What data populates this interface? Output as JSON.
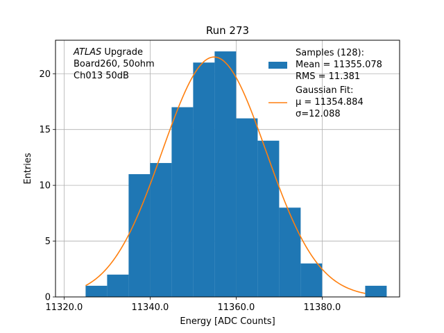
{
  "chart_data": {
    "type": "histogram",
    "title": "Run 273",
    "xlabel": "Energy [ADC Counts]",
    "ylabel": "Entries",
    "xlim": [
      11318,
      11398
    ],
    "ylim": [
      0,
      23
    ],
    "x_ticks": [
      11320,
      11340,
      11360,
      11380
    ],
    "x_tick_labels": [
      "11320.0",
      "11340.0",
      "11360.0",
      "11380.0"
    ],
    "y_ticks": [
      0,
      5,
      10,
      15,
      20
    ],
    "y_tick_labels": [
      "0",
      "5",
      "10",
      "15",
      "20"
    ],
    "grid": true,
    "bar_color": "#1f77b4",
    "fit_color": "#ff7f0e",
    "bins": [
      {
        "x0": 11325,
        "x1": 11330,
        "count": 1
      },
      {
        "x0": 11330,
        "x1": 11335,
        "count": 2
      },
      {
        "x0": 11335,
        "x1": 11340,
        "count": 11
      },
      {
        "x0": 11340,
        "x1": 11345,
        "count": 12
      },
      {
        "x0": 11345,
        "x1": 11350,
        "count": 17
      },
      {
        "x0": 11350,
        "x1": 11355,
        "count": 21
      },
      {
        "x0": 11355,
        "x1": 11360,
        "count": 22
      },
      {
        "x0": 11360,
        "x1": 11365,
        "count": 16
      },
      {
        "x0": 11365,
        "x1": 11370,
        "count": 14
      },
      {
        "x0": 11370,
        "x1": 11375,
        "count": 8
      },
      {
        "x0": 11375,
        "x1": 11380,
        "count": 3
      },
      {
        "x0": 11380,
        "x1": 11385,
        "count": 0
      },
      {
        "x0": 11385,
        "x1": 11390,
        "count": 0
      },
      {
        "x0": 11390,
        "x1": 11395,
        "count": 1
      }
    ],
    "fit": {
      "mu": 11354.884,
      "sigma": 12.088,
      "amplitude": 21.5,
      "x_range": [
        11325,
        11390
      ]
    },
    "annotation": {
      "lines": [
        {
          "italic": "ATLAS",
          "text": " Upgrade"
        },
        {
          "italic": "",
          "text": " Board260, 50ohm"
        },
        {
          "italic": "",
          "text": " Ch013 50dB"
        }
      ]
    },
    "legend": {
      "placement": "upper-right",
      "entries": [
        {
          "kind": "bar",
          "lines": [
            "Samples (128):",
            " Mean = 11355.078",
            " RMS = 11.381"
          ]
        },
        {
          "kind": "line",
          "lines": [
            "Gaussian Fit:",
            " μ = 11354.884",
            " σ=12.088"
          ]
        }
      ]
    }
  }
}
